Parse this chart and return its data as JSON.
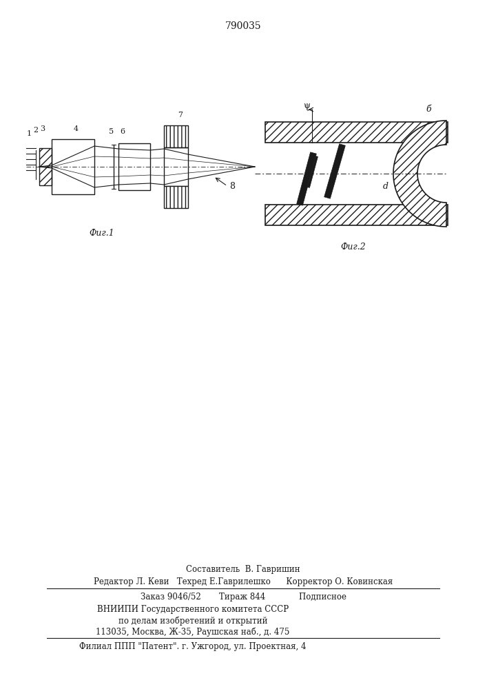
{
  "patent_number": "790035",
  "fig1_label": "Фиг.1",
  "fig2_label": "Фиг.2",
  "label1": "1",
  "label2": "2",
  "label3": "3",
  "label4": "4",
  "label5": "5",
  "label6": "6",
  "label7": "7",
  "label8": "8",
  "label_b": "б",
  "label_psi": "ψ",
  "label_d": "d",
  "footer_line1": "Составитель  В. Гавришин",
  "footer_line2": "Редактор Л. Кеви   Техред Е.Гаврилешко      Корректор О. Ковинская",
  "footer_line3": "Заказ 9046/52       Тираж 844             Подписное",
  "footer_line4": "ВНИИПИ Государственного комитета СССР",
  "footer_line5": "по делам изобретений и открытий",
  "footer_line6": "113035, Москва, Ж-35, Раушская наб., д. 475",
  "footer_line7": "Филиал ППП \"Патент\". г. Ужгород, ул. Проектная, 4",
  "bg_color": "#ffffff",
  "line_color": "#1a1a1a"
}
